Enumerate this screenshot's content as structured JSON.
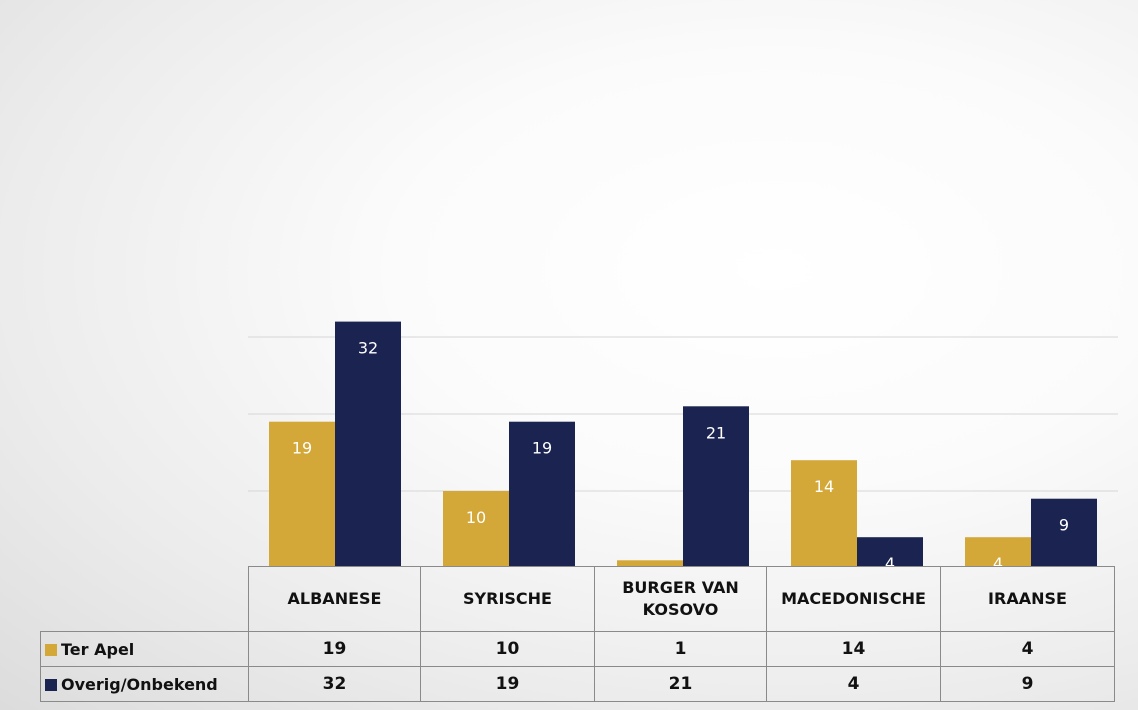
{
  "chart_data": {
    "type": "bar",
    "categories": [
      "ALBANESE",
      "SYRISCHE",
      "BURGER VAN KOSOVO",
      "MACEDONISCHE",
      "IRAANSE"
    ],
    "series": [
      {
        "name": "Ter Apel",
        "color": "#d4a838",
        "values": [
          19,
          10,
          1,
          14,
          4
        ]
      },
      {
        "name": "Overig/Onbekend",
        "color": "#1b2450",
        "values": [
          32,
          19,
          21,
          4,
          9
        ]
      }
    ],
    "ylim": [
      0,
      35
    ],
    "grid": true,
    "data_labels": true,
    "legend": "data-table-below"
  },
  "table": {
    "headers": [
      "ALBANESE",
      "SYRISCHE",
      "BURGER VAN KOSOVO",
      "MACEDONISCHE",
      "IRAANSE"
    ],
    "rows": [
      {
        "label": "Ter Apel",
        "values": [
          "19",
          "10",
          "1",
          "14",
          "4"
        ]
      },
      {
        "label": "Overig/Onbekend",
        "values": [
          "32",
          "19",
          "21",
          "4",
          "9"
        ]
      }
    ]
  }
}
